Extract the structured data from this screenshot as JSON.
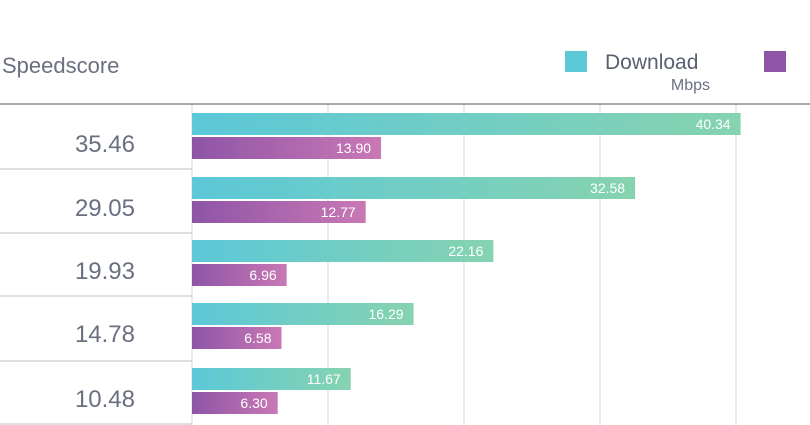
{
  "header": {
    "column_title": "Speedscore",
    "unit_label": "Mbps"
  },
  "legend": [
    {
      "name": "Download",
      "color": "#5cc8d8"
    },
    {
      "name": "",
      "color": "#8e55a6"
    }
  ],
  "chart_data": {
    "type": "bar",
    "orientation": "horizontal",
    "row_labels": [
      "35.46",
      "29.05",
      "19.93",
      "14.78",
      "10.48"
    ],
    "series": [
      {
        "name": "Download",
        "values": [
          40.34,
          32.58,
          22.16,
          16.29,
          11.67
        ],
        "value_labels": [
          "40.34",
          "32.58",
          "22.16",
          "16.29",
          "11.67"
        ],
        "color_start": "#5cc8d8",
        "color_end": "#86d3b0"
      },
      {
        "name": "",
        "values": [
          13.9,
          12.77,
          6.96,
          6.58,
          6.3
        ],
        "value_labels": [
          "13.90",
          "12.77",
          "6.96",
          "6.58",
          "6.30"
        ],
        "color_start": "#8e55a6",
        "color_end": "#c978b5"
      }
    ],
    "xlim": [
      0,
      40
    ],
    "grid": true,
    "legend_position": "top-right"
  }
}
